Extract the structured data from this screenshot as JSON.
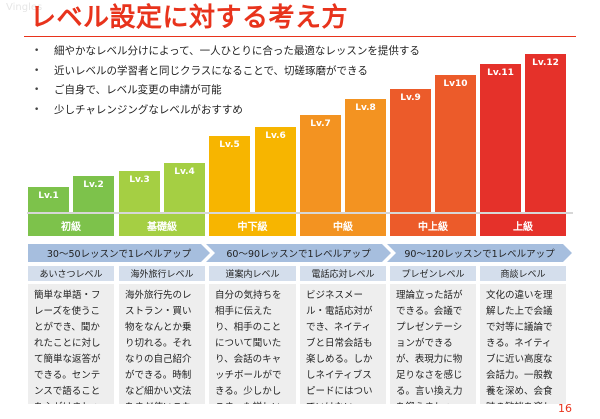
{
  "watermark": "Vingles",
  "title": "レベル設定に対する考え方",
  "bullets": [
    "細やかなレベル分けによって、一人ひとりに合った最適なレッスンを提供する",
    "近いレベルの学習者と同じクラスになることで、切磋琢磨ができる",
    "ご自身で、レベル変更の申請が可能",
    "少しチャレンジングなレベルがおすすめ"
  ],
  "levels": [
    {
      "label": "Lv.1",
      "color": "#7dc24b"
    },
    {
      "label": "Lv.2",
      "color": "#7dc24b"
    },
    {
      "label": "Lv.3",
      "color": "#a5cf43"
    },
    {
      "label": "Lv.4",
      "color": "#a5cf43"
    },
    {
      "label": "Lv.5",
      "color": "#f7b500"
    },
    {
      "label": "Lv.6",
      "color": "#f7b500"
    },
    {
      "label": "Lv.7",
      "color": "#f39321"
    },
    {
      "label": "Lv.8",
      "color": "#f39321"
    },
    {
      "label": "Lv.9",
      "color": "#ec5b2a"
    },
    {
      "label": "Lv10",
      "color": "#ec5b2a"
    },
    {
      "label": "Lv.11",
      "color": "#e5312a"
    },
    {
      "label": "Lv.12",
      "color": "#e5312a"
    }
  ],
  "tiers": [
    {
      "label": "初級",
      "color": "#7dc24b"
    },
    {
      "label": "基礎級",
      "color": "#a5cf43"
    },
    {
      "label": "中下級",
      "color": "#f7b500"
    },
    {
      "label": "中級",
      "color": "#f39321"
    },
    {
      "label": "中上級",
      "color": "#ec5b2a"
    },
    {
      "label": "上級",
      "color": "#e5312a"
    }
  ],
  "pace": [
    "30～50レッスンで1レベルアップ",
    "60～90レッスンで1レベルアップ",
    "90～120レッスンで1レベルアップ"
  ],
  "columns": [
    {
      "head": "あいさつレベル",
      "body": "簡単な単語・フレーズを使うことができ、聞かれたことに対して簡単な返答ができる。センテンスで語ることを心がけましょう。"
    },
    {
      "head": "海外旅行レベル",
      "body": "海外旅行先のレストラン・買い物をなんとか乗り切れる。それなりの自己紹介ができる。時制など細かい文法をまだ使いこなせない。"
    },
    {
      "head": "道案内レベル",
      "body": "自分の気持ちを相手に伝えたり、相手のことについて聞いたり、会話のキャッチボールができる。少しかしこまった詳しいテーマでは行き詰ってしまう。"
    },
    {
      "head": "電話応対レベル",
      "body": "ビジネスメール・電話応対ができ、ネイティブと日常会話も楽しめる。しかしネイティブスピードにはついていけない。"
    },
    {
      "head": "プレゼンレベル",
      "body": "理論立った話ができる。会議でプレゼンテーションができるが、表現力に物足りなさを感じる。言い換え力を鍛えましょう。"
    },
    {
      "head": "商談レベル",
      "body": "文化の違いを理解した上で会議で対等に議論できる。ネイティブに近い高度な会話力。一般教養を深め、会食時の歓談を楽しもう。"
    }
  ],
  "page_number": "16"
}
